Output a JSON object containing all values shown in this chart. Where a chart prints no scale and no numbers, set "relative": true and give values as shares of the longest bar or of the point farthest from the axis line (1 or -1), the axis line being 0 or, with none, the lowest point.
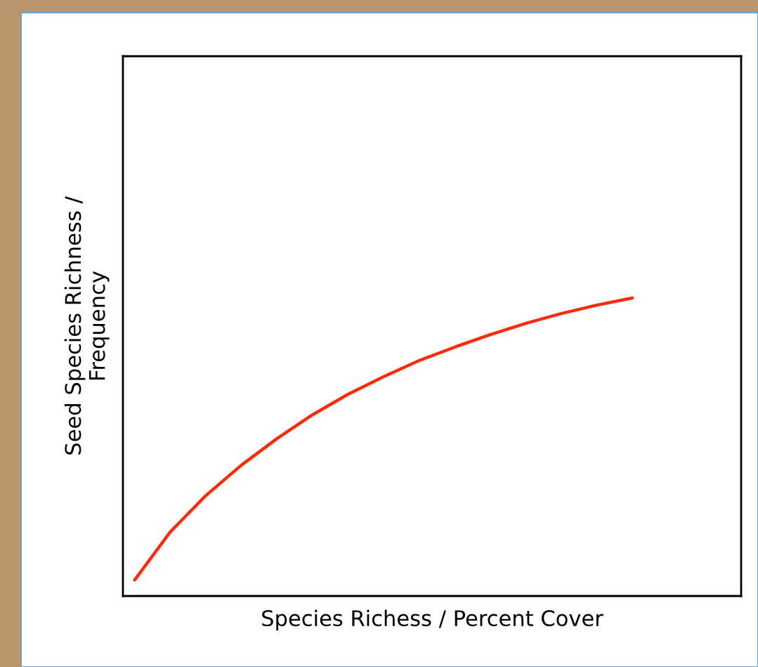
{
  "chart_data": {
    "type": "line",
    "relative": true,
    "xlabel": "Species Richess / Percent Cover",
    "ylabel": "Seed Species Richness /\nFrequency",
    "categories": [
      null,
      null,
      null,
      null,
      null,
      null,
      null,
      null,
      null,
      null,
      null,
      null,
      null,
      null,
      null
    ],
    "series": [
      {
        "color": "#ff2a0a",
        "values": [
          0.054,
          0.215,
          0.337,
          0.439,
          0.528,
          0.608,
          0.677,
          0.736,
          0.79,
          0.835,
          0.877,
          0.915,
          0.948,
          0.976,
          1.0
        ]
      }
    ],
    "marker": "none",
    "line_style": "solid",
    "grid": false,
    "legend": false,
    "tick_labels": false
  }
}
